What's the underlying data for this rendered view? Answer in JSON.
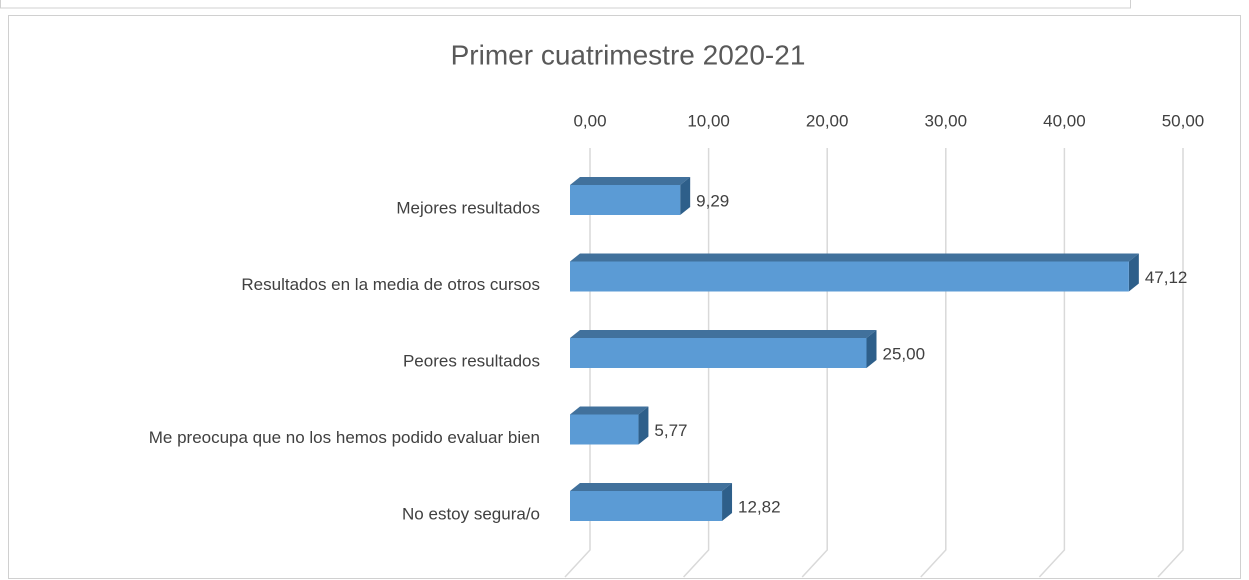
{
  "chart_data": {
    "type": "bar3d_horizontal",
    "title": "Primer cuatrimestre 2020-21",
    "categories": [
      "Mejores resultados",
      "Resultados en la media de otros cursos",
      "Peores resultados",
      "Me preocupa que no los hemos podido evaluar bien",
      "No estoy segura/o"
    ],
    "values": [
      9.29,
      47.12,
      25.0,
      5.77,
      12.82
    ],
    "value_labels": [
      "9,29",
      "47,12",
      "25,00",
      "5,77",
      "12,82"
    ],
    "color": "#5b9bd5",
    "xlim": [
      0,
      50
    ],
    "xticks": [
      {
        "value": 0,
        "label": "0,00"
      },
      {
        "value": 10,
        "label": "10,00"
      },
      {
        "value": 20,
        "label": "20,00"
      },
      {
        "value": 30,
        "label": "30,00"
      },
      {
        "value": 40,
        "label": "40,00"
      },
      {
        "value": 50,
        "label": "50,00"
      }
    ],
    "grid": true
  }
}
